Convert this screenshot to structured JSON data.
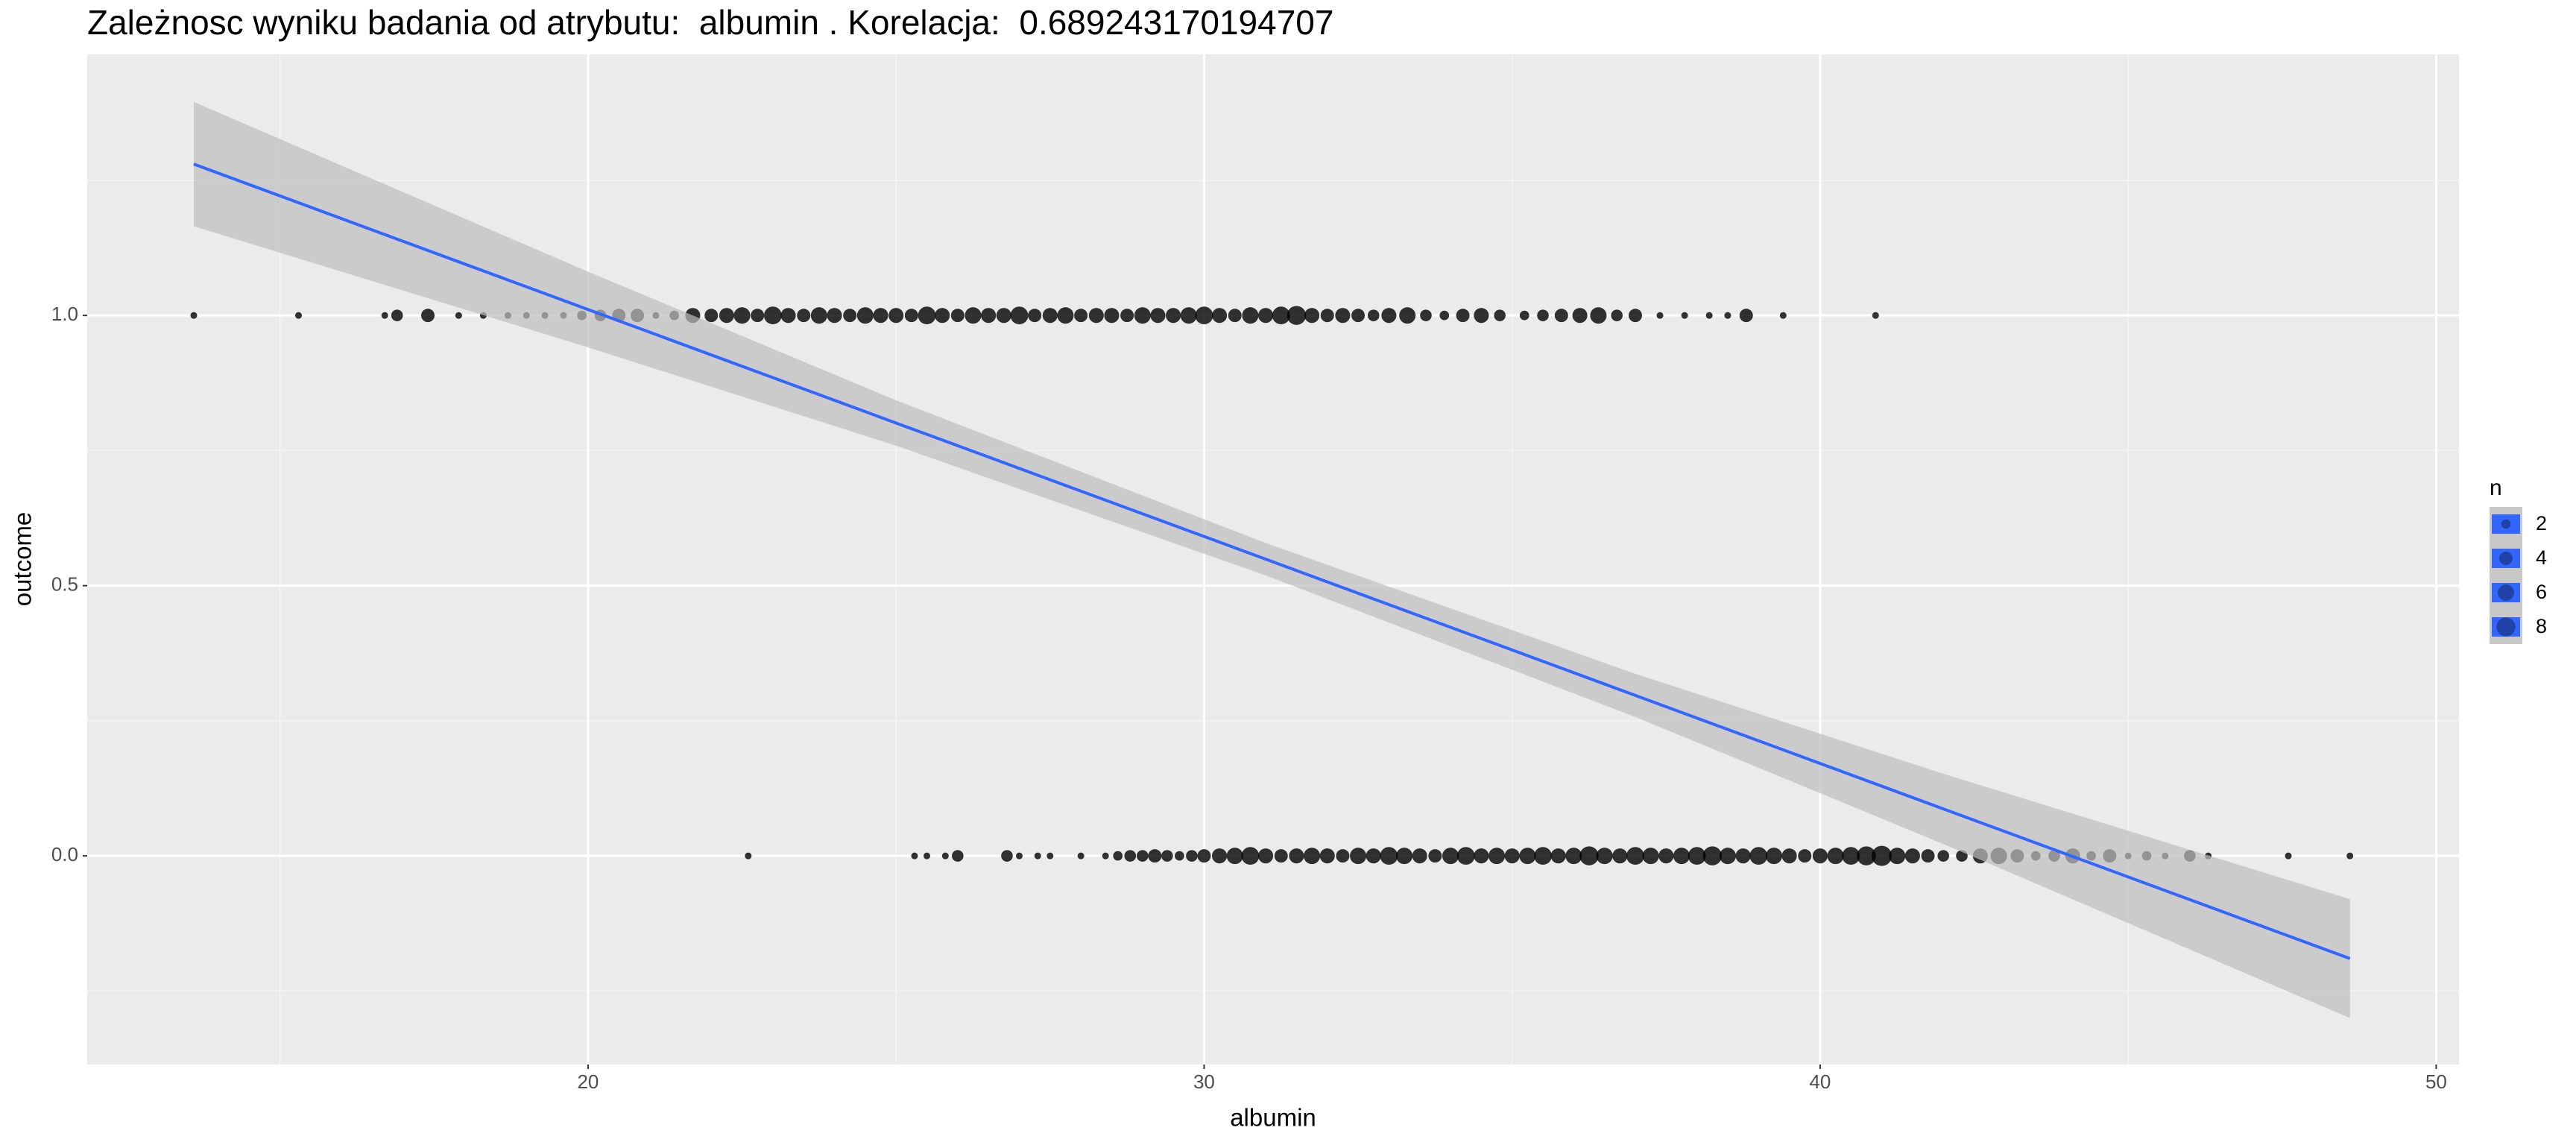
{
  "chart_data": {
    "type": "scatter",
    "title": "Zależnosc wyniku badania od atrybutu:  albumin . Korelacja:  0.689243170194707",
    "x_label": "albumin",
    "y_label": "outcome",
    "xlim": [
      11.87,
      50.37
    ],
    "ylim": [
      -0.386,
      1.483
    ],
    "xticks": [
      20,
      30,
      40,
      50
    ],
    "yticks": [
      {
        "value": 0,
        "label": "0.0"
      },
      {
        "value": 0.5,
        "label": "0.5"
      },
      {
        "value": 1,
        "label": "1.0"
      }
    ],
    "xminor": [
      15,
      25,
      35,
      45
    ],
    "yminor": [
      -0.25,
      0.25,
      0.75,
      1.25
    ],
    "grid": true,
    "point_color": "#000000",
    "groups": [
      {
        "y": 1,
        "x": [
          13.6,
          15.3,
          16.7,
          16.9,
          17.4,
          17.9,
          18.3,
          18.7,
          19.0,
          19.3,
          19.6,
          19.9,
          20.2,
          20.5,
          20.8,
          21.1,
          21.4,
          21.7,
          22.0,
          22.25,
          22.5,
          22.75,
          23.0,
          23.25,
          23.5,
          23.75,
          24.0,
          24.25,
          24.5,
          24.75,
          25.0,
          25.25,
          25.5,
          25.75,
          26.0,
          26.25,
          26.5,
          26.75,
          27.0,
          27.25,
          27.5,
          27.75,
          28.0,
          28.25,
          28.5,
          28.75,
          29.0,
          29.25,
          29.5,
          29.75,
          30.0,
          30.25,
          30.5,
          30.75,
          31.0,
          31.25,
          31.5,
          31.75,
          32.0,
          32.25,
          32.5,
          32.75,
          33.0,
          33.3,
          33.6,
          33.9,
          34.2,
          34.5,
          34.8,
          35.2,
          35.5,
          35.8,
          36.1,
          36.4,
          36.7,
          37.0,
          37.4,
          37.8,
          38.2,
          38.5,
          38.8,
          39.4,
          40.9
        ],
        "n": [
          1,
          1,
          1,
          3,
          4,
          1,
          1,
          1,
          1,
          1,
          1,
          2,
          3,
          4,
          4,
          1,
          2,
          5,
          4,
          5,
          6,
          4,
          7,
          5,
          4,
          6,
          5,
          4,
          6,
          5,
          5,
          4,
          7,
          5,
          4,
          6,
          5,
          5,
          7,
          4,
          5,
          6,
          4,
          5,
          5,
          4,
          6,
          5,
          5,
          6,
          7,
          5,
          4,
          6,
          5,
          7,
          8,
          5,
          4,
          5,
          4,
          3,
          5,
          6,
          3,
          2,
          4,
          5,
          3,
          2,
          3,
          4,
          5,
          6,
          3,
          4,
          1,
          1,
          1,
          1,
          4,
          1,
          1
        ]
      },
      {
        "y": 0,
        "x": [
          22.6,
          25.3,
          25.5,
          25.8,
          26.0,
          26.8,
          27.0,
          27.3,
          27.5,
          28.0,
          28.4,
          28.6,
          28.8,
          29.0,
          29.2,
          29.4,
          29.6,
          29.8,
          30.0,
          30.25,
          30.5,
          30.75,
          31.0,
          31.25,
          31.5,
          31.75,
          32.0,
          32.25,
          32.5,
          32.75,
          33.0,
          33.25,
          33.5,
          33.75,
          34.0,
          34.25,
          34.5,
          34.75,
          35.0,
          35.25,
          35.5,
          35.75,
          36.0,
          36.25,
          36.5,
          36.75,
          37.0,
          37.25,
          37.5,
          37.75,
          38.0,
          38.25,
          38.5,
          38.75,
          39.0,
          39.25,
          39.5,
          39.75,
          40.0,
          40.25,
          40.5,
          40.75,
          41.0,
          41.25,
          41.5,
          41.75,
          42.0,
          42.3,
          42.6,
          42.9,
          43.2,
          43.5,
          43.8,
          44.1,
          44.4,
          44.7,
          45.0,
          45.3,
          45.6,
          46.0,
          46.3,
          47.6,
          48.6
        ],
        "n": [
          1,
          1,
          1,
          1,
          3,
          3,
          1,
          1,
          1,
          1,
          1,
          2,
          3,
          3,
          4,
          3,
          2,
          3,
          4,
          5,
          6,
          7,
          5,
          4,
          5,
          6,
          5,
          4,
          6,
          5,
          7,
          6,
          5,
          4,
          6,
          7,
          5,
          6,
          5,
          6,
          7,
          5,
          6,
          8,
          6,
          5,
          7,
          6,
          5,
          6,
          7,
          8,
          6,
          5,
          7,
          6,
          5,
          4,
          5,
          6,
          7,
          8,
          9,
          6,
          5,
          4,
          3,
          3,
          5,
          6,
          4,
          2,
          3,
          5,
          2,
          4,
          1,
          2,
          1,
          3,
          1,
          1,
          1
        ]
      }
    ],
    "fit": {
      "color": "#3366FF",
      "band_color": "#bebebe",
      "x": [
        13.6,
        20,
        25,
        31,
        37,
        42,
        48.6
      ],
      "y": [
        1.28,
        1.011,
        0.801,
        0.549,
        0.297,
        0.087,
        -0.19
      ],
      "ymin": [
        1.165,
        0.941,
        0.759,
        0.519,
        0.257,
        0.022,
        -0.3
      ],
      "ymax": [
        1.395,
        1.081,
        0.843,
        0.579,
        0.337,
        0.152,
        -0.08
      ]
    },
    "legend": {
      "title": "n",
      "sizes": [
        2,
        4,
        6,
        8
      ],
      "key_color": "#3366FF"
    }
  }
}
